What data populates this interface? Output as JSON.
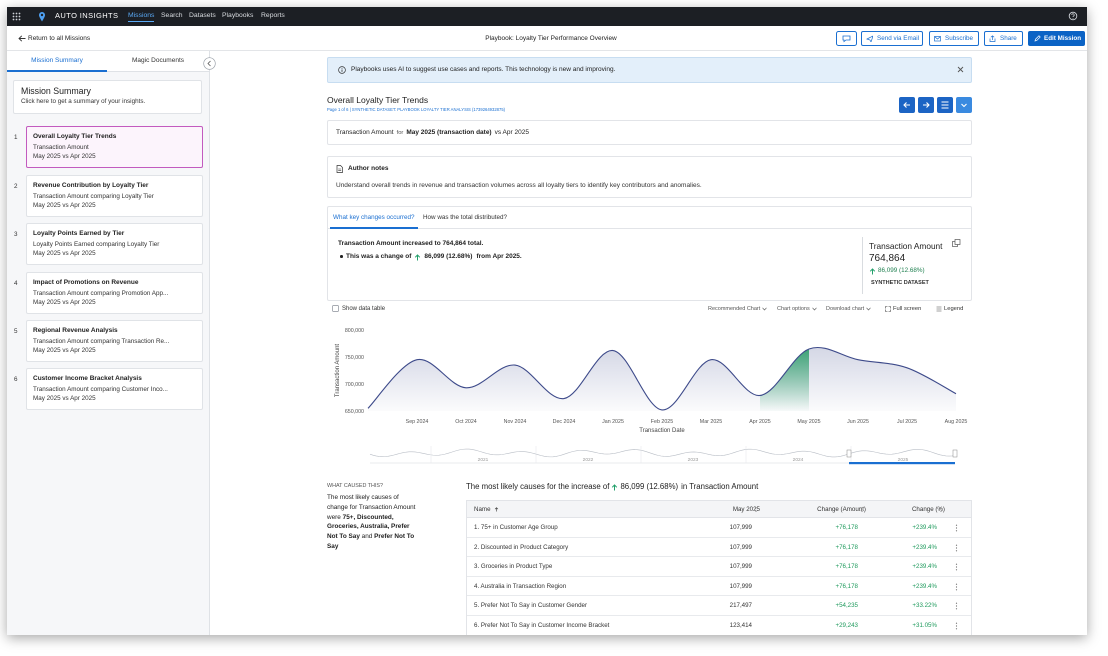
{
  "nav": {
    "brand": "AUTO INSIGHTS",
    "links": [
      "Missions",
      "Search",
      "Datasets",
      "Playbooks",
      "Reports"
    ]
  },
  "toolbar": {
    "back": "Return to all Missions",
    "title": "Playbook: Loyalty Tier Performance Overview",
    "buttons": [
      "Send via Email",
      "Subscribe",
      "Share"
    ],
    "primary": "Edit Mission"
  },
  "sidebar": {
    "tabs": [
      "Mission Summary",
      "Magic Documents"
    ],
    "summary": {
      "title": "Mission Summary",
      "text": "Click here to get a summary of your insights."
    },
    "items": [
      {
        "number": "1",
        "title": "Overall Loyalty Tier Trends",
        "subtitle": "Transaction Amount",
        "period": "May 2025 vs Apr 2025"
      },
      {
        "number": "2",
        "title": "Revenue Contribution by Loyalty Tier",
        "subtitle": "Transaction Amount comparing Loyalty Tier",
        "period": "May 2025 vs Apr 2025"
      },
      {
        "number": "3",
        "title": "Loyalty Points Earned by Tier",
        "subtitle": "Loyalty Points Earned comparing Loyalty Tier",
        "period": "May 2025 vs Apr 2025"
      },
      {
        "number": "4",
        "title": "Impact of Promotions on Revenue",
        "subtitle": "Transaction Amount comparing Promotion App...",
        "period": "May 2025 vs Apr 2025"
      },
      {
        "number": "5",
        "title": "Regional Revenue Analysis",
        "subtitle": "Transaction Amount comparing Transaction Re...",
        "period": "May 2025 vs Apr 2025"
      },
      {
        "number": "6",
        "title": "Customer Income Bracket Analysis",
        "subtitle": "Transaction Amount comparing Customer Inco...",
        "period": "May 2025 vs Apr 2025"
      }
    ]
  },
  "banner": "Playbooks uses AI to suggest use cases and reports. This technology is new and improving.",
  "page": {
    "title": "Overall Loyalty Tier Trends",
    "meta": "Page 1 of 6 | SYNTHETIC DATASET: PLAYBOOK LOYALTY TIER ANALYSIS (1739264932875)"
  },
  "filter": {
    "measure": "Transaction Amount",
    "for": "for",
    "period": "May 2025 (transaction date)",
    "vs": "vs Apr 2025"
  },
  "notes": {
    "title": "Author notes",
    "text": "Understand overall trends in revenue and transaction volumes across all loyalty tiers to identify key contributors and anomalies."
  },
  "insight": {
    "tabs": [
      "What key changes occurred?",
      "How was the total distributed?"
    ],
    "headline": "Transaction Amount increased to 764,864 total.",
    "change_prefix": "This was a change of",
    "change": "86,099 (12.68%)",
    "change_suffix": "from Apr 2025.",
    "kpi": {
      "title": "Transaction Amount",
      "value": "764,864",
      "change": "86,099 (12.68%)",
      "source": "SYNTHETIC DATASET"
    }
  },
  "chart_controls": {
    "show_table": "Show data table",
    "menus": [
      "Recommended Chart",
      "Chart options",
      "Download chart"
    ],
    "full_screen": "Full screen",
    "legend": "Legend"
  },
  "chart_data": {
    "type": "area",
    "y_label": "Transaction Amount",
    "x_label": "Transaction Date",
    "categories": [
      null,
      "Sep 2024",
      "Oct 2024",
      "Nov 2024",
      "Dec 2024",
      "Jan 2025",
      "Feb 2025",
      "Mar 2025",
      "Apr 2025",
      "May 2025",
      "Jun 2025",
      "Jul 2025",
      "Aug 2025"
    ],
    "values": [
      655000,
      745000,
      693000,
      735000,
      673000,
      762000,
      652000,
      745000,
      678765,
      764864,
      745000,
      730000,
      682000
    ],
    "color": "#3d4a8a",
    "highlight": {
      "from": 8,
      "to": 9,
      "color": "#2e9e6b"
    },
    "ylim": [
      650000,
      800000
    ],
    "yticks": [
      {
        "value": 650000,
        "label": "650,000"
      },
      {
        "value": 700000,
        "label": "700,000"
      },
      {
        "value": 750000,
        "label": "750,000"
      },
      {
        "value": 800000,
        "label": "800,000"
      }
    ],
    "grid": false,
    "navigator_labels": [
      "2021",
      "2022",
      "2023",
      "2024",
      "2025"
    ]
  },
  "causes": {
    "label": "WHAT CAUSED THIS?",
    "summary": [
      {
        "text": "The most likely causes of change for Transaction Amount were ",
        "bold": false
      },
      {
        "text": "75+, Discounted, Groceries, Australia, Prefer Not To Say",
        "bold": true
      },
      {
        "text": " and ",
        "bold": false
      },
      {
        "text": "Prefer Not To Say",
        "bold": true
      }
    ],
    "title_prefix": "The most likely causes for the increase of",
    "title_change": "86,099 (12.68%)",
    "title_suffix": "in Transaction Amount",
    "columns": [
      "Name",
      "May 2025",
      "Change (Amount)",
      "Change (%)"
    ],
    "rows": [
      [
        "1. 75+ in Customer Age Group",
        "107,999",
        "+76,178",
        "+239.4%"
      ],
      [
        "2. Discounted in Product Category",
        "107,999",
        "+76,178",
        "+239.4%"
      ],
      [
        "3. Groceries in Product Type",
        "107,999",
        "+76,178",
        "+239.4%"
      ],
      [
        "4. Australia in Transaction Region",
        "107,999",
        "+76,178",
        "+239.4%"
      ],
      [
        "5. Prefer Not To Say in Customer Gender",
        "217,497",
        "+54,235",
        "+33.22%"
      ],
      [
        "6. Prefer Not To Say in Customer Income Bracket",
        "123,414",
        "+29,243",
        "+31.05%"
      ]
    ]
  }
}
